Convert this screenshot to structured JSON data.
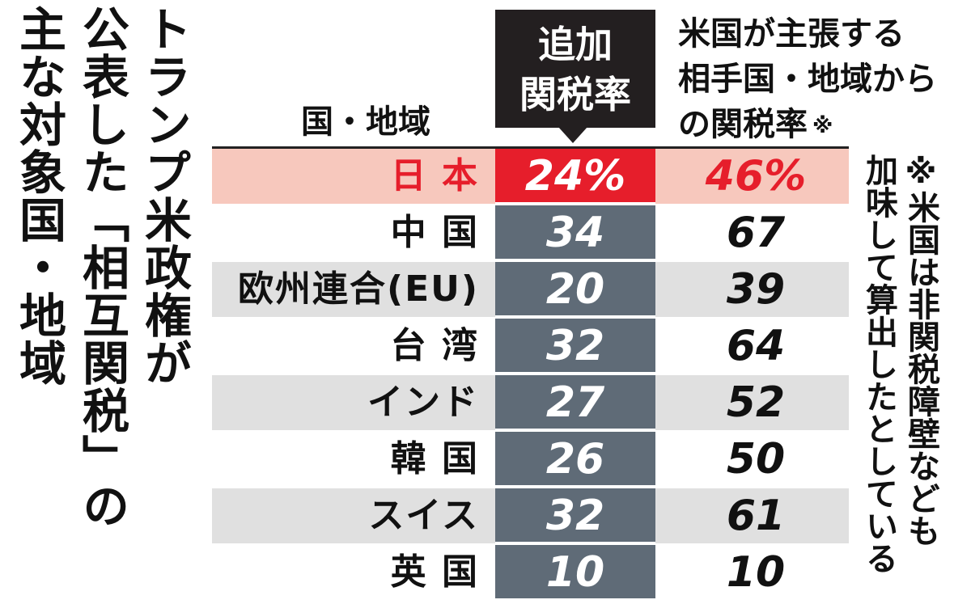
{
  "title_lines": [
    "トランプ米政権が",
    "公表した「相互関税」の",
    "主な対象国・地域"
  ],
  "headers": {
    "country": "国・地域",
    "additional": "追加\n関税率",
    "claimed": "米国が主張する\n相手国・地域から\nの関税率",
    "claimed_mark": "※"
  },
  "footnote": "※米国は非関税障壁なども\n加味して算出したとしている",
  "colors": {
    "highlight_red": "#e61e2b",
    "bar_gray": "#5f6b77",
    "header_black": "#231f20",
    "highlight_bg": "#f7c8bd",
    "row_shade": "#e0e0e0"
  },
  "chart_data": {
    "type": "table",
    "columns": [
      "国・地域",
      "追加関税率",
      "米国が主張する相手国・地域からの関税率"
    ],
    "rows": [
      {
        "name": "日 本",
        "additional": "24%",
        "claimed": "46%",
        "highlight": true
      },
      {
        "name": "中 国",
        "additional": "34",
        "claimed": "67"
      },
      {
        "name": "欧州連合(EU)",
        "additional": "20",
        "claimed": "39"
      },
      {
        "name": "台 湾",
        "additional": "32",
        "claimed": "64"
      },
      {
        "name": "インド",
        "additional": "27",
        "claimed": "52"
      },
      {
        "name": "韓 国",
        "additional": "26",
        "claimed": "50"
      },
      {
        "name": "スイス",
        "additional": "32",
        "claimed": "61"
      },
      {
        "name": "英 国",
        "additional": "10",
        "claimed": "10"
      }
    ]
  }
}
